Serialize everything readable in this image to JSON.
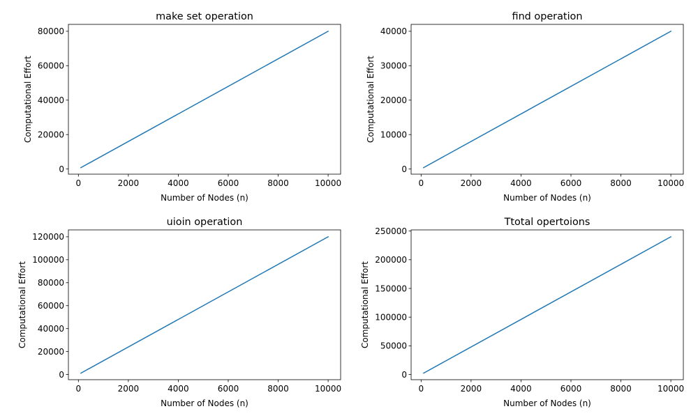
{
  "colors": {
    "series": "#1f77b4",
    "axes": "#000000",
    "background": "#ffffff"
  },
  "chart_data": [
    {
      "type": "line",
      "title": "make set operation",
      "xlabel": "Number of Nodes (n)",
      "ylabel": "Computational Effort",
      "xlim": [
        -400,
        10500
      ],
      "ylim": [
        -3000,
        84000
      ],
      "xticks": [
        0,
        2000,
        4000,
        6000,
        8000,
        10000
      ],
      "xtick_labels": [
        "0",
        "2000",
        "4000",
        "6000",
        "8000",
        "10000"
      ],
      "yticks": [
        0,
        20000,
        40000,
        60000,
        80000
      ],
      "ytick_labels": [
        "0",
        "20000",
        "40000",
        "60000",
        "80000"
      ],
      "grid": false,
      "series": [
        {
          "x": [
            100,
            10000
          ],
          "y": [
            800,
            80000
          ]
        }
      ]
    },
    {
      "type": "line",
      "title": "find operation",
      "xlabel": "Number of Nodes (n)",
      "ylabel": "Computational Effort",
      "xlim": [
        -400,
        10500
      ],
      "ylim": [
        -1500,
        42000
      ],
      "xticks": [
        0,
        2000,
        4000,
        6000,
        8000,
        10000
      ],
      "xtick_labels": [
        "0",
        "2000",
        "4000",
        "6000",
        "8000",
        "10000"
      ],
      "yticks": [
        0,
        10000,
        20000,
        30000,
        40000
      ],
      "ytick_labels": [
        "0",
        "10000",
        "20000",
        "30000",
        "40000"
      ],
      "grid": false,
      "series": [
        {
          "x": [
            100,
            10000
          ],
          "y": [
            400,
            40000
          ]
        }
      ]
    },
    {
      "type": "line",
      "title": "uioin operation",
      "xlabel": "Number of Nodes (n)",
      "ylabel": "Computational Effort",
      "xlim": [
        -400,
        10500
      ],
      "ylim": [
        -4500,
        126000
      ],
      "xticks": [
        0,
        2000,
        4000,
        6000,
        8000,
        10000
      ],
      "xtick_labels": [
        "0",
        "2000",
        "4000",
        "6000",
        "8000",
        "10000"
      ],
      "yticks": [
        0,
        20000,
        40000,
        60000,
        80000,
        100000,
        120000
      ],
      "ytick_labels": [
        "0",
        "20000",
        "40000",
        "60000",
        "80000",
        "100000",
        "120000"
      ],
      "grid": false,
      "series": [
        {
          "x": [
            100,
            10000
          ],
          "y": [
            1200,
            120000
          ]
        }
      ]
    },
    {
      "type": "line",
      "title": "Ttotal opertoions",
      "xlabel": "Number of Nodes (n)",
      "ylabel": "Computational Effort",
      "xlim": [
        -400,
        10500
      ],
      "ylim": [
        -9000,
        252000
      ],
      "xticks": [
        0,
        2000,
        4000,
        6000,
        8000,
        10000
      ],
      "xtick_labels": [
        "0",
        "2000",
        "4000",
        "6000",
        "8000",
        "10000"
      ],
      "yticks": [
        0,
        50000,
        100000,
        150000,
        200000,
        250000
      ],
      "ytick_labels": [
        "0",
        "50000",
        "100000",
        "150000",
        "200000",
        "250000"
      ],
      "grid": false,
      "series": [
        {
          "x": [
            100,
            10000
          ],
          "y": [
            2400,
            240000
          ]
        }
      ]
    }
  ]
}
